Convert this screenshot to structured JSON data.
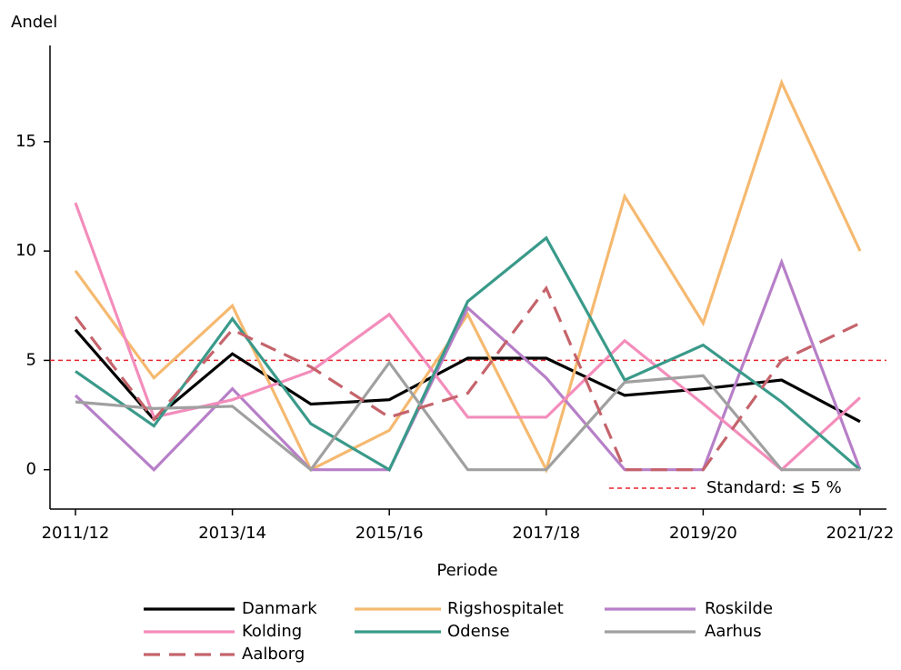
{
  "chart_data": {
    "type": "line",
    "y_label": "Andel",
    "x_label": "Periode",
    "categories": [
      "2011/12",
      null,
      "2013/14",
      null,
      "2015/16",
      null,
      "2017/18",
      null,
      "2019/20",
      null,
      "2021/22"
    ],
    "ylim": [
      -1.8,
      19.4
    ],
    "yticks": [
      0,
      5,
      10,
      15
    ],
    "grid": false,
    "legend": "bottom",
    "reference_line": {
      "value": 5,
      "label": "Standard: ≤ 5 %",
      "color": "#e8242b"
    },
    "series": [
      {
        "name": "Danmark",
        "color": "#000000",
        "dash": false,
        "values": [
          6.4,
          2.3,
          5.3,
          3.0,
          3.2,
          5.1,
          5.1,
          3.4,
          3.7,
          4.1,
          2.2
        ]
      },
      {
        "name": "Rigshospitalet",
        "color": "#f5b970",
        "dash": false,
        "values": [
          9.1,
          4.2,
          7.5,
          0,
          1.8,
          7.1,
          0,
          12.5,
          6.7,
          17.7,
          10.0
        ]
      },
      {
        "name": "Roskilde",
        "color": "#b77fc8",
        "dash": false,
        "values": [
          3.4,
          0,
          3.7,
          0,
          0,
          7.4,
          4.2,
          0,
          0,
          9.5,
          0
        ]
      },
      {
        "name": "Kolding",
        "color": "#f38dbb",
        "dash": false,
        "values": [
          12.2,
          2.4,
          3.2,
          4.5,
          7.1,
          2.4,
          2.4,
          5.9,
          3.0,
          0,
          3.3
        ]
      },
      {
        "name": "Odense",
        "color": "#3a9a8a",
        "dash": false,
        "values": [
          4.5,
          2.0,
          6.9,
          2.1,
          0,
          7.7,
          10.6,
          4.1,
          5.7,
          3.1,
          0
        ]
      },
      {
        "name": "Aarhus",
        "color": "#a0a0a0",
        "dash": false,
        "values": [
          3.1,
          2.8,
          2.9,
          0,
          4.9,
          0,
          0,
          4.0,
          4.3,
          0,
          0
        ]
      },
      {
        "name": "Aalborg",
        "color": "#c5636b",
        "dash": true,
        "values": [
          7.0,
          2.3,
          6.4,
          4.7,
          2.4,
          3.5,
          8.3,
          0,
          0,
          5.0,
          6.7
        ]
      }
    ]
  }
}
